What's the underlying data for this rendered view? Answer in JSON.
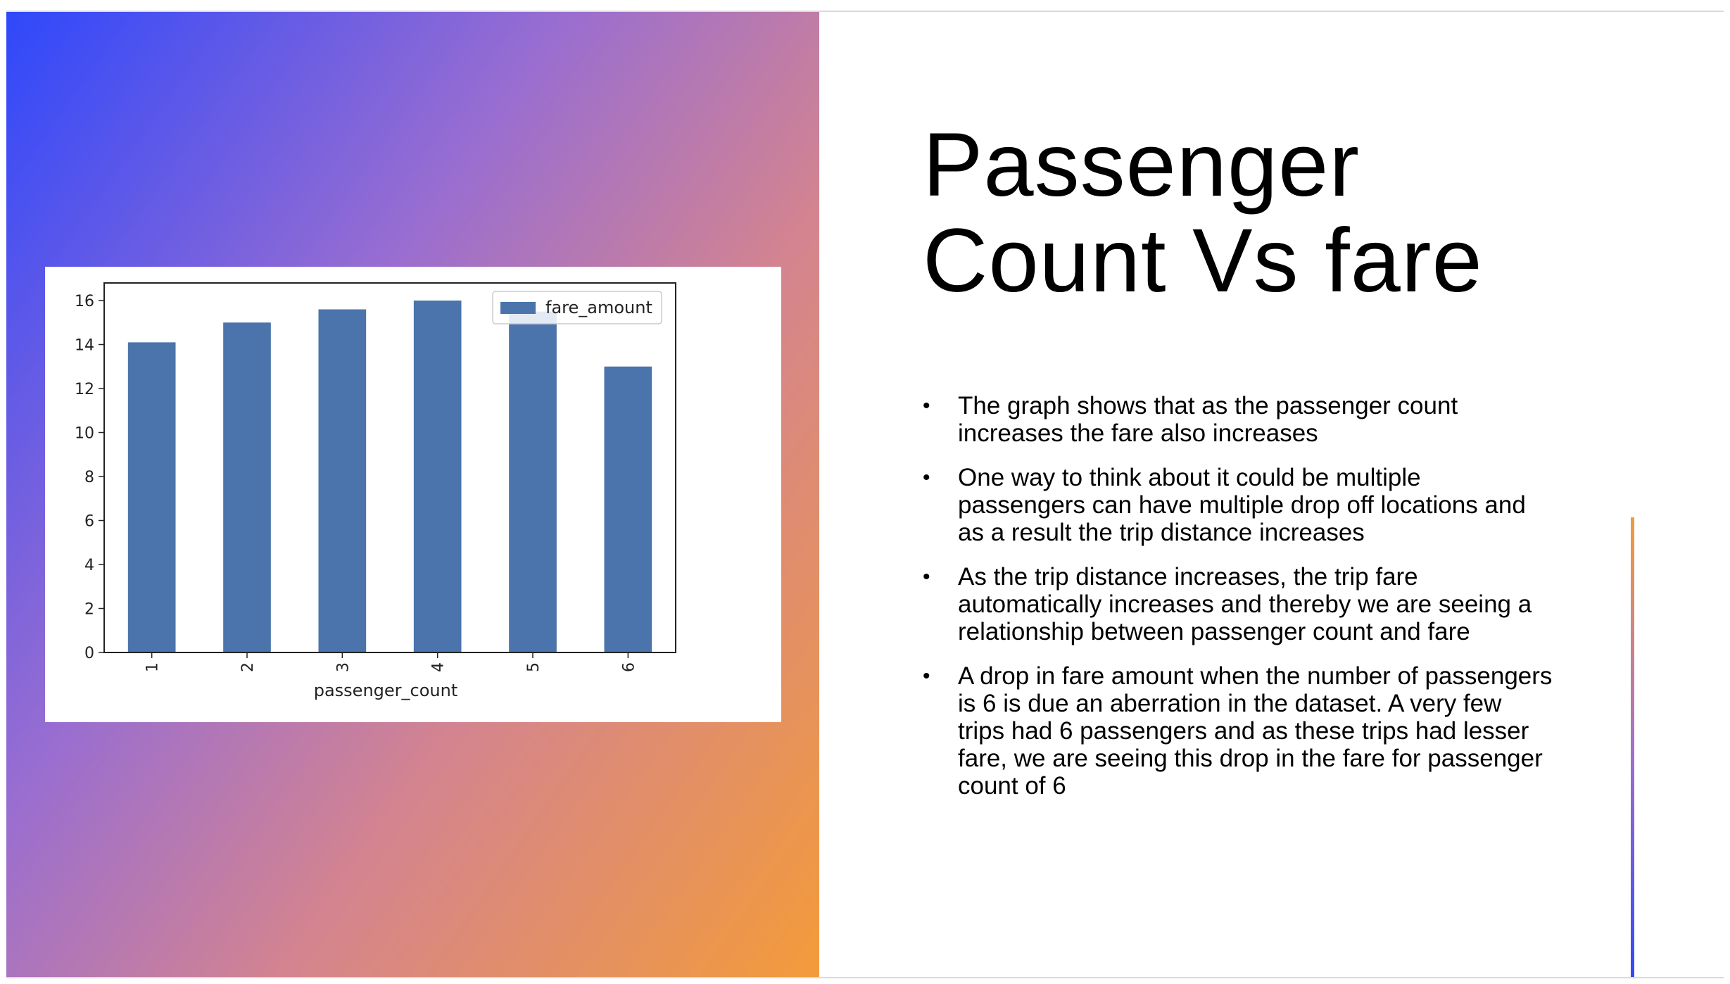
{
  "slide": {
    "title_line1": "Passenger",
    "title_line2": "Count Vs fare",
    "bullets": [
      "The graph shows that as the passenger count increases the fare also increases",
      "One way to think about it could be multiple passengers can have multiple drop off locations and as a result the trip distance increases",
      "As the trip distance increases, the trip fare automatically increases and thereby we are seeing a relationship between passenger count and fare",
      "A drop in fare amount when the number of passengers is 6 is due an aberration in the dataset. A very few trips had 6 passengers and as these trips had lesser fare, we are seeing this drop in the fare for passenger count of 6"
    ],
    "bullet_glyph": "•"
  },
  "colors": {
    "gradient_start": "#2f48fb",
    "gradient_end": "#f39b3a",
    "bar": "#4a74ab"
  },
  "chart_data": {
    "type": "bar",
    "categories": [
      "1",
      "2",
      "3",
      "4",
      "5",
      "6"
    ],
    "series": [
      {
        "name": "fare_amount",
        "values": [
          14.1,
          15.0,
          15.6,
          16.0,
          15.5,
          13.0
        ]
      }
    ],
    "title": "",
    "xlabel": "passenger_count",
    "ylabel": "",
    "ylim": [
      0,
      16.8
    ],
    "yticks": [
      "0",
      "2",
      "4",
      "6",
      "8",
      "10",
      "12",
      "14",
      "16"
    ],
    "grid": false,
    "legend_position": "top-right",
    "xtick_rotation": "vertical"
  }
}
